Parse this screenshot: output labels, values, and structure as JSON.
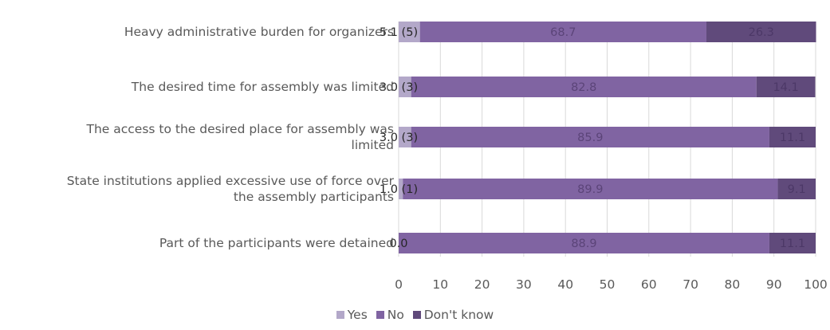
{
  "chart_data": {
    "type": "bar",
    "orientation": "horizontal",
    "stacked": true,
    "categories": [
      "Heavy administrative burden for organizers",
      "The desired time for assembly was limited",
      "The access to the desired place for assembly was limited",
      "State institutions applied excessive use of force over the assembly participants",
      "Part of the participants were detained"
    ],
    "category_lines": [
      [
        "Heavy administrative burden for organizers"
      ],
      [
        "The desired time for assembly was limited"
      ],
      [
        "The access to the desired place for assembly was",
        "limited"
      ],
      [
        "State institutions applied excessive use of force over",
        "the assembly participants"
      ],
      [
        "Part of the participants were detained"
      ]
    ],
    "series": [
      {
        "name": "Yes",
        "color": "#b3a8c9",
        "values": [
          5.1,
          3.0,
          3.0,
          1.0,
          0.0
        ]
      },
      {
        "name": "No",
        "color": "#8064a2",
        "values": [
          68.7,
          82.8,
          85.9,
          89.9,
          88.9
        ]
      },
      {
        "name": "Don't know",
        "color": "#604a7b",
        "values": [
          26.3,
          14.1,
          11.1,
          9.1,
          11.1
        ]
      }
    ],
    "data_labels": {
      "Yes": [
        "5.1 (5)",
        "3.0 (3)",
        "3.0 (3)",
        "1.0 (1)",
        "0.0"
      ],
      "No": [
        "68.7",
        "82.8",
        "85.9",
        "89.9",
        "88.9"
      ],
      "Don't know": [
        "26.3",
        "14.1",
        "11.1",
        "9.1",
        "11.1"
      ]
    },
    "xlim": [
      0,
      100
    ],
    "xticks": [
      0,
      10,
      20,
      30,
      40,
      50,
      60,
      70,
      80,
      90,
      100
    ],
    "grid": true,
    "legend_position": "bottom"
  }
}
